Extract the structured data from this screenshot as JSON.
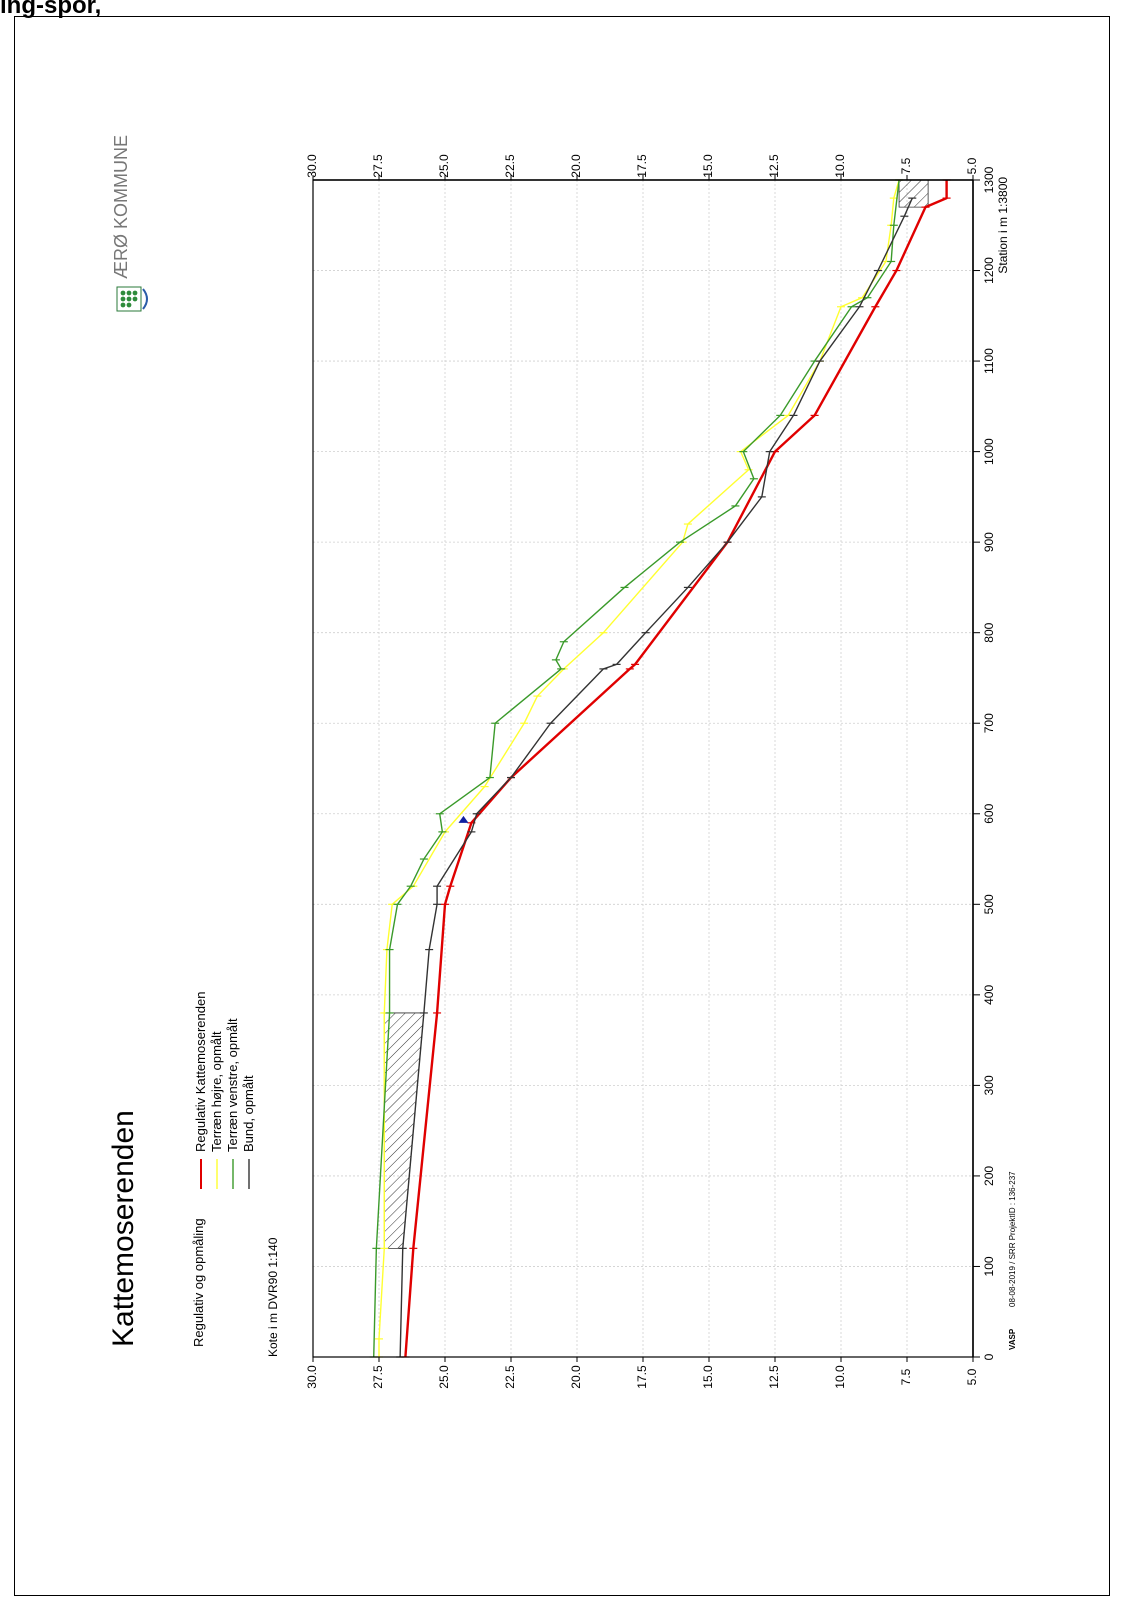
{
  "page": {
    "title": "ing-spor,"
  },
  "municipality": {
    "name": "ÆRØ KOMMUNE",
    "logo": "aero-kommune-crest"
  },
  "chart_data": {
    "type": "line",
    "orientation": "rotated-90-ccw",
    "title": "Kattemoserenden",
    "subtitle": "Regulativ og opmåling",
    "xlabel": "Station i m  1:3800",
    "ylabel": "Kote i m DVR90 1:140",
    "xlim": [
      0,
      1300
    ],
    "ylim": [
      5.0,
      30.0
    ],
    "x_ticks": [
      "0",
      "100",
      "200",
      "300",
      "400",
      "500",
      "600",
      "700",
      "800",
      "900",
      "1000",
      "1100",
      "1200",
      "1300"
    ],
    "y_ticks": [
      "5.0",
      "7.5",
      "10.0",
      "12.5",
      "15.0",
      "17.5",
      "20.0",
      "22.5",
      "25.0",
      "27.5",
      "30.0"
    ],
    "grid": true,
    "legend_position": "top-left",
    "footer": {
      "left": "VASP",
      "text": "08-08-2019 / SRR   ProjektID : 136-237"
    },
    "series": [
      {
        "name": "Regulativ Kattemoserenden",
        "color": "#e00000",
        "x": [
          0,
          120,
          380,
          500,
          520,
          590,
          640,
          760,
          765,
          900,
          1000,
          1040,
          1160,
          1200,
          1270,
          1280,
          1300
        ],
        "y": [
          26.5,
          26.2,
          25.3,
          25.0,
          24.8,
          24.0,
          22.5,
          18.0,
          17.8,
          14.3,
          12.5,
          11.0,
          8.7,
          7.9,
          6.8,
          6.0,
          6.0
        ]
      },
      {
        "name": "Terræn højre, opmålt",
        "color": "#ffff30",
        "x": [
          0,
          20,
          120,
          380,
          450,
          500,
          520,
          580,
          630,
          700,
          730,
          760,
          800,
          900,
          920,
          980,
          1000,
          1040,
          1100,
          1160,
          1170,
          1210,
          1250,
          1280,
          1300
        ],
        "y": [
          27.5,
          27.5,
          27.3,
          27.3,
          27.2,
          27.0,
          26.2,
          25.0,
          23.5,
          22.0,
          21.5,
          20.5,
          19.0,
          16.0,
          15.8,
          13.5,
          13.8,
          12.0,
          10.8,
          10.0,
          9.2,
          8.3,
          8.1,
          8.0,
          7.8
        ]
      },
      {
        "name": "Terræn venstre, opmålt",
        "color": "#3a9a2a",
        "x": [
          0,
          120,
          380,
          450,
          500,
          520,
          550,
          580,
          600,
          640,
          700,
          760,
          770,
          790,
          850,
          900,
          940,
          970,
          1000,
          1040,
          1100,
          1160,
          1170,
          1210,
          1250,
          1300
        ],
        "y": [
          27.7,
          27.6,
          27.1,
          27.1,
          26.8,
          26.3,
          25.8,
          25.1,
          25.2,
          23.3,
          23.1,
          20.6,
          20.8,
          20.5,
          18.2,
          16.1,
          14.0,
          13.3,
          13.7,
          12.3,
          11.0,
          9.6,
          9.0,
          8.1,
          8.0,
          7.8
        ]
      },
      {
        "name": "Bund, opmålt",
        "color": "#333333",
        "x": [
          0,
          120,
          380,
          450,
          500,
          520,
          580,
          600,
          640,
          700,
          760,
          765,
          800,
          850,
          900,
          950,
          1000,
          1040,
          1100,
          1160,
          1200,
          1260,
          1280
        ],
        "y": [
          26.7,
          26.6,
          25.8,
          25.6,
          25.3,
          25.3,
          24.0,
          23.8,
          22.5,
          21.0,
          19.0,
          18.5,
          17.4,
          15.8,
          14.3,
          13.0,
          12.7,
          11.8,
          10.8,
          9.3,
          8.6,
          7.6,
          7.3
        ]
      }
    ]
  }
}
